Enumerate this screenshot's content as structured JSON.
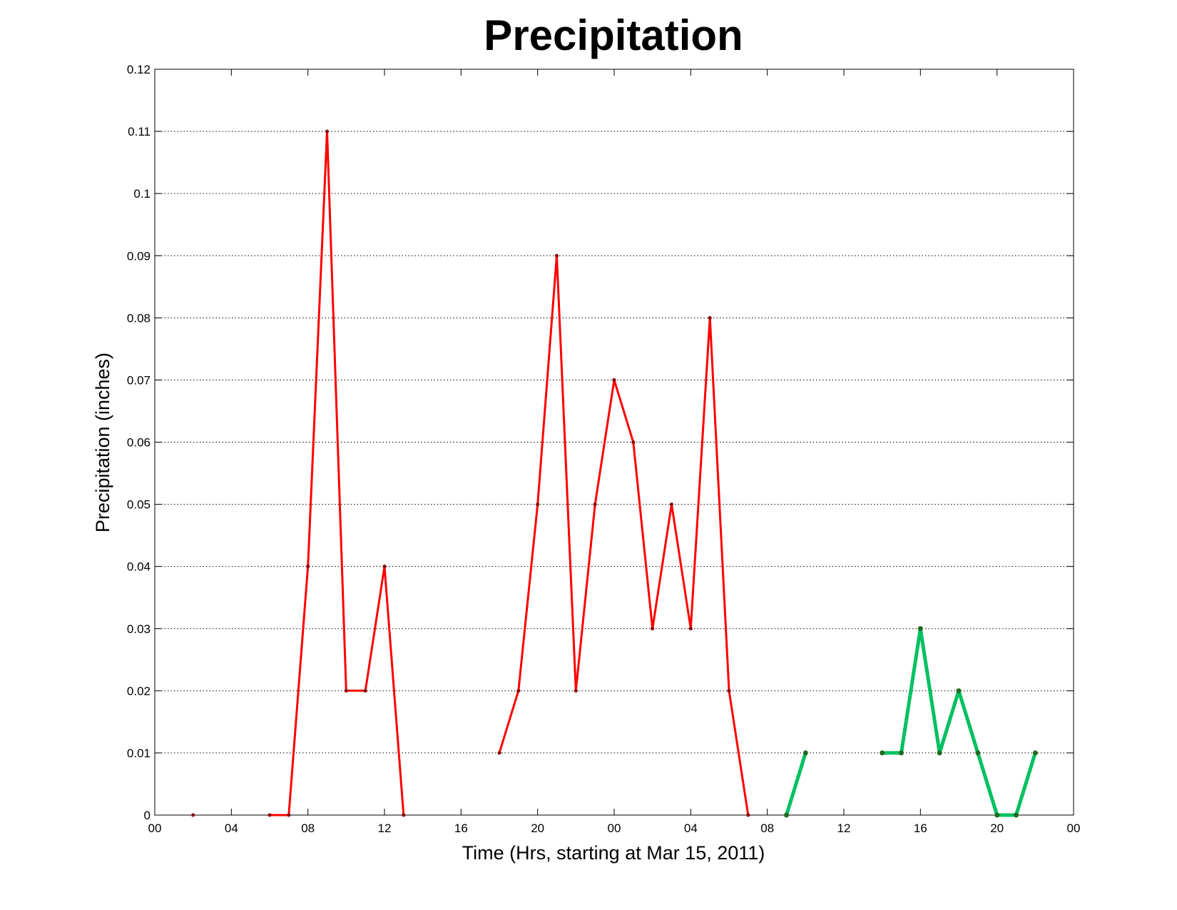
{
  "chart_data": {
    "type": "line",
    "title": "Precipitation",
    "xlabel": "Time (Hrs, starting at Mar 15, 2011)",
    "ylabel": "Precipitation (inches)",
    "x_tick_labels": [
      "00",
      "04",
      "08",
      "12",
      "16",
      "20",
      "00",
      "04",
      "08",
      "12",
      "16",
      "20",
      "00"
    ],
    "y_tick_labels": [
      "0",
      "0.01",
      "0.02",
      "0.03",
      "0.04",
      "0.05",
      "0.06",
      "0.07",
      "0.08",
      "0.09",
      "0.1",
      "0.11",
      "0.12"
    ],
    "xlim": [
      0,
      48
    ],
    "ylim": [
      0,
      0.12
    ],
    "x_tick_values": [
      0,
      4,
      8,
      12,
      16,
      20,
      24,
      28,
      32,
      36,
      40,
      44,
      48
    ],
    "y_tick_values": [
      0,
      0.01,
      0.02,
      0.03,
      0.04,
      0.05,
      0.06,
      0.07,
      0.08,
      0.09,
      0.1,
      0.11,
      0.12
    ],
    "grid": "horizontal dotted",
    "series": [
      {
        "color": "#ff0000",
        "marker_color": "#8b0000",
        "line_weight": "thin",
        "segments": [
          {
            "x": [
              2
            ],
            "y": [
              0
            ]
          },
          {
            "x": [
              6,
              7,
              8,
              9,
              10,
              11,
              12,
              13
            ],
            "y": [
              0,
              0,
              0.04,
              0.11,
              0.02,
              0.02,
              0.04,
              0
            ]
          },
          {
            "x": [
              18,
              19,
              20,
              21,
              22,
              23,
              24,
              25,
              26,
              27,
              28,
              29,
              30,
              31
            ],
            "y": [
              0.01,
              0.02,
              0.05,
              0.09,
              0.02,
              0.05,
              0.07,
              0.06,
              0.03,
              0.05,
              0.03,
              0.08,
              0.02,
              0
            ]
          }
        ]
      },
      {
        "color": "#00c060",
        "marker_color": "#1f6b1f",
        "line_weight": "thick",
        "segments": [
          {
            "x": [
              33,
              34
            ],
            "y": [
              0,
              0.01
            ]
          },
          {
            "x": [
              38,
              39,
              40,
              41,
              42,
              43,
              44,
              45,
              46
            ],
            "y": [
              0.01,
              0.01,
              0.03,
              0.01,
              0.02,
              0.01,
              0,
              0,
              0.01
            ]
          }
        ]
      }
    ]
  }
}
